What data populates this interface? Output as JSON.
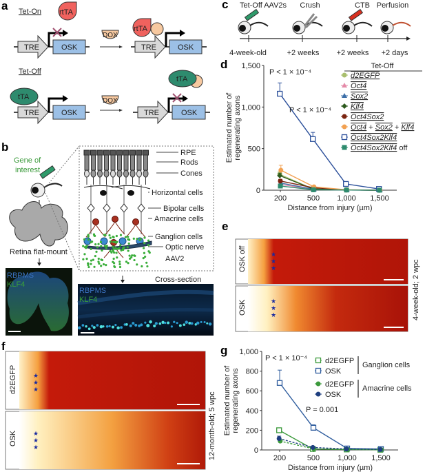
{
  "panel_labels": [
    "a",
    "b",
    "c",
    "d",
    "e",
    "f",
    "g"
  ],
  "panel_a": {
    "tet_on": "Tet-On",
    "tet_off": "Tet-Off",
    "rtTA": "rtTA",
    "tTA": "tTA",
    "TRE": "TRE",
    "OSK": "OSK",
    "DOX": "DOX",
    "colors": {
      "rtTA": "#f0625e",
      "tTA": "#2e8b6e",
      "dox": "#f7c9a0",
      "TRE": "#d9d9d9",
      "OSK": "#9cc0e6"
    }
  },
  "panel_b": {
    "gene_of_interest": [
      "Gene of",
      "interest"
    ],
    "flat_mount": "Retina flat-mount",
    "cross_section": "Cross-section",
    "layers": [
      "RPE",
      "Rods",
      "Cones",
      "Horizontal cells",
      "Bipolar cells",
      "Amacrine cells",
      "Ganglion cells",
      "Optic nerve",
      "AAV2"
    ],
    "stain_1": "RBPMS",
    "stain_2": "KLF4"
  },
  "panel_c": {
    "steps": [
      {
        "event": "Tet-Off AAV2s",
        "time": "4-week-old"
      },
      {
        "event": "Crush",
        "time": "+2 weeks"
      },
      {
        "event": "CTB",
        "time": "+2 weeks"
      },
      {
        "event": "Perfusion",
        "time": "+2 days"
      }
    ]
  },
  "panel_e": {
    "rows": [
      "OSK off",
      "OSK"
    ],
    "side_label": "4-week-old; 2 wpc"
  },
  "panel_f": {
    "rows": [
      "d2EGFP",
      "OSK"
    ],
    "side_label": "12-month-old; 5 wpc"
  },
  "chart_data": [
    {
      "id": "d",
      "type": "line",
      "xlabel": "Distance from injury (µm)",
      "ylabel": [
        "Estimated number of",
        "regenerating axons"
      ],
      "categories": [
        "200",
        "500",
        "1,000",
        "1,500"
      ],
      "yticks": [
        "0",
        "500",
        "1,000",
        "1,500"
      ],
      "ylim": [
        0,
        1500
      ],
      "legend_title": "Tet-Off",
      "legend_placement": "top-right",
      "annotations": [
        "P < 1 × 10⁻⁴",
        "P < 1 × 10⁻⁴"
      ],
      "series": [
        {
          "name": "d2EGFP",
          "color": "#a9bf6e",
          "marker": "circle",
          "values": [
            190,
            15,
            3,
            0
          ],
          "errors": [
            30,
            5,
            0,
            0
          ]
        },
        {
          "name": "Oct4",
          "color": "#e48aa8",
          "marker": "triangle",
          "values": [
            70,
            10,
            2,
            0
          ],
          "errors": [
            15,
            3,
            0,
            0
          ]
        },
        {
          "name": "Sox2",
          "color": "#3c6fa8",
          "marker": "triangle",
          "values": [
            85,
            10,
            2,
            0
          ],
          "errors": [
            15,
            3,
            0,
            0
          ]
        },
        {
          "name": "Klf4",
          "color": "#2d5a1e",
          "marker": "diamond",
          "values": [
            175,
            15,
            3,
            0
          ],
          "errors": [
            30,
            5,
            0,
            0
          ]
        },
        {
          "name": "Oct4 Sox2",
          "color": "#7a2410",
          "marker": "circle",
          "values": [
            110,
            30,
            3,
            0
          ],
          "errors": [
            20,
            8,
            0,
            0
          ]
        },
        {
          "name": "Oct4 + Sox2 + Klf4",
          "color": "#f2a152",
          "marker": "circle",
          "values": [
            240,
            40,
            5,
            0
          ],
          "errors": [
            60,
            10,
            0,
            0
          ]
        },
        {
          "name": "Oct4 Sox2 Klf4",
          "color": "#2b4f9a",
          "marker": "open-square",
          "values": [
            1160,
            615,
            75,
            15
          ],
          "errors": [
            130,
            80,
            10,
            5
          ]
        },
        {
          "name": "Oct4 Sox2 Klf4 off",
          "color": "#2e8b6e",
          "marker": "square",
          "values": [
            50,
            5,
            2,
            0
          ],
          "errors": [
            10,
            2,
            0,
            0
          ]
        }
      ]
    },
    {
      "id": "g",
      "type": "line",
      "xlabel": "Distance from injury (µm)",
      "ylabel": [
        "Estimated number of",
        "regenerating axons"
      ],
      "categories": [
        "200",
        "500",
        "1,000",
        "1,500"
      ],
      "yticks": [
        "0",
        "200",
        "400",
        "600",
        "800",
        "1,000"
      ],
      "ylim": [
        0,
        1000
      ],
      "legend_placement": "top-right",
      "groups": [
        "Ganglion cells",
        "Amacrine cells"
      ],
      "annotations": [
        "P < 1 × 10⁻⁴",
        "P = 0.001"
      ],
      "series": [
        {
          "name": "d2EGFP",
          "group": "Ganglion cells",
          "color": "#3c9a3c",
          "marker": "open-square",
          "values": [
            200,
            10,
            5,
            2
          ],
          "errors": [
            10,
            3,
            2,
            0
          ]
        },
        {
          "name": "OSK",
          "group": "Ganglion cells",
          "color": "#2f5d9e",
          "marker": "open-square",
          "values": [
            680,
            225,
            15,
            10
          ],
          "errors": [
            130,
            30,
            5,
            3
          ]
        },
        {
          "name": "d2EGFP",
          "group": "Amacrine cells",
          "color": "#3c9a3c",
          "marker": "circle",
          "dashed": true,
          "values": [
            90,
            10,
            5,
            3
          ],
          "errors": [
            15,
            3,
            2,
            0
          ]
        },
        {
          "name": "OSK",
          "group": "Amacrine cells",
          "color": "#1f3f80",
          "marker": "circle",
          "dashed": true,
          "values": [
            115,
            25,
            10,
            5
          ],
          "errors": [
            25,
            5,
            2,
            0
          ]
        }
      ]
    }
  ]
}
